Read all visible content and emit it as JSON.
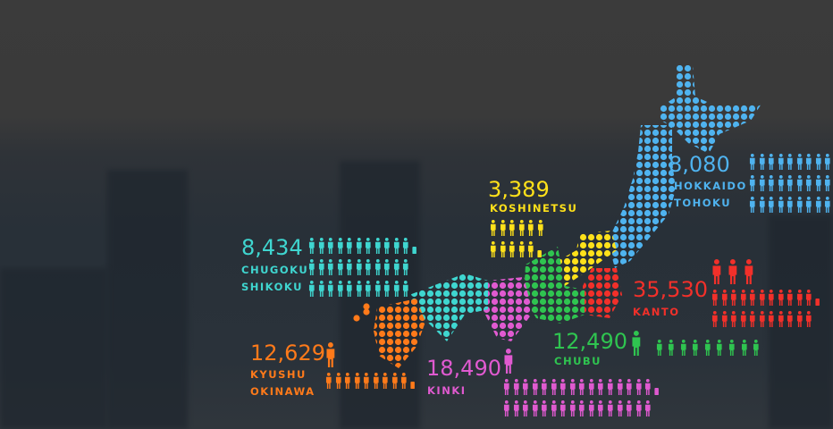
{
  "chart_data": {
    "type": "pictogram-map",
    "regions": [
      {
        "name": "HOKKAIDO TOHOKU",
        "label_lines": [
          "HOKKAIDO",
          "TOHOKU"
        ],
        "value": 8080,
        "value_label": "8,080",
        "color": "#4fb3ef"
      },
      {
        "name": "KOSHINETSU",
        "label_lines": [
          "KOSHINETSU"
        ],
        "value": 3389,
        "value_label": "3,389",
        "color": "#ffe11a"
      },
      {
        "name": "KANTO",
        "label_lines": [
          "KANTO"
        ],
        "value": 35530,
        "value_label": "35,530",
        "color": "#f2302a"
      },
      {
        "name": "CHUBU",
        "label_lines": [
          "CHUBU"
        ],
        "value": 12490,
        "value_label": "12,490",
        "color": "#2fc450"
      },
      {
        "name": "KINKI",
        "label_lines": [
          "KINKI"
        ],
        "value": 18490,
        "value_label": "18,490",
        "color": "#e05ad0"
      },
      {
        "name": "CHUGOKU SHIKOKU",
        "label_lines": [
          "CHUGOKU",
          "SHIKOKU"
        ],
        "value": 8434,
        "value_label": "8,434",
        "color": "#3fd6d0"
      },
      {
        "name": "KYUSHU OKINAWA",
        "label_lines": [
          "KYUSHU",
          "OKINAWA"
        ],
        "value": 12629,
        "value_label": "12,629",
        "color": "#ff7a1a"
      }
    ]
  }
}
